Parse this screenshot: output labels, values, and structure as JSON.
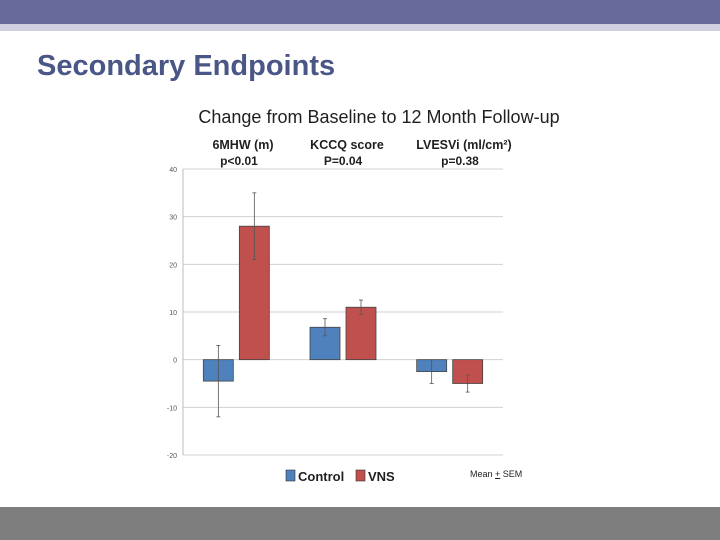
{
  "slide": {
    "title": "Secondary Endpoints",
    "note_prefix": "Mean ",
    "note_pm": "+",
    "note_suffix": " SEM"
  },
  "chart_data": {
    "type": "bar",
    "title": "Change from Baseline to 12 Month Follow-up",
    "groups": [
      {
        "label": "6MHW (m)",
        "pvalue": "p<0.01"
      },
      {
        "label": "KCCQ score",
        "pvalue": "P=0.04"
      },
      {
        "label": "LVESVi (ml/cm²)",
        "pvalue": "p=0.38"
      }
    ],
    "series": [
      {
        "name": "Control",
        "color": "#4f81bd",
        "values": [
          -4.5,
          6.8,
          -2.5
        ],
        "errors": [
          7.5,
          1.8,
          2.5
        ]
      },
      {
        "name": "VNS",
        "color": "#c0504d",
        "values": [
          28.0,
          11.0,
          -5.0
        ],
        "errors": [
          7.0,
          1.5,
          1.8
        ]
      }
    ],
    "yticks": [
      -20,
      -10,
      0,
      10,
      20,
      30,
      40
    ],
    "ylim": [
      -20,
      40
    ],
    "grid": true,
    "legend": "bottom"
  },
  "colors": {
    "header_bar": "#67699a",
    "title_text": "#4a5786",
    "control": "#4f81bd",
    "vns": "#c0504d"
  }
}
